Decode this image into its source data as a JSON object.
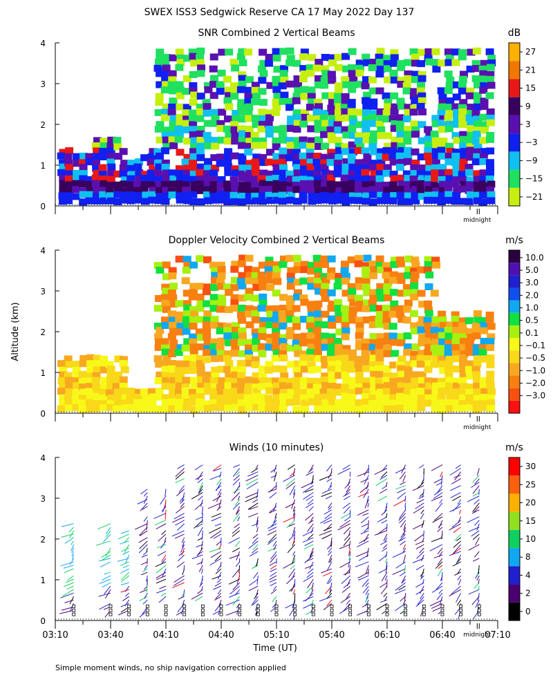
{
  "header": {
    "title": "SWEX ISS3 Sedgwick Reserve CA  17 May 2022 Day 137"
  },
  "y_axis": {
    "label": "Altitude (km)",
    "ticks": [
      0,
      1,
      2,
      3,
      4
    ]
  },
  "x_axis": {
    "label": "Time (UT)",
    "ticks": [
      "03:10",
      "03:40",
      "04:10",
      "04:40",
      "05:10",
      "05:40",
      "06:10",
      "06:40",
      "07:10"
    ],
    "midnight_label": "midnight"
  },
  "footnote": "Simple moment winds, no ship navigation correction applied",
  "colors": {
    "snr": [
      "#c6ef10",
      "#20e060",
      "#10c0f0",
      "#1020f0",
      "#5a10b0",
      "#3a0060",
      "#e81818",
      "#f07800",
      "#ffb000"
    ],
    "velocity": [
      "#ff1010",
      "#f85010",
      "#f88010",
      "#f8a820",
      "#f8d818",
      "#f8f818",
      "#a8f010",
      "#10e040",
      "#10a8f0",
      "#1050f0",
      "#2020d0",
      "#5010b0",
      "#2a0040"
    ],
    "winds": [
      "#000000",
      "#4a0070",
      "#2020d0",
      "#10a8f0",
      "#10d060",
      "#90e020",
      "#ffb000",
      "#ff6010",
      "#ff0000"
    ]
  },
  "chart_data": [
    {
      "type": "heatmap",
      "title": "SNR Combined 2 Vertical Beams",
      "ylabel": "Altitude (km)",
      "xlabel": "",
      "x_range": [
        "03:10",
        "07:10"
      ],
      "ylim": [
        0,
        4
      ],
      "colorbar": {
        "unit": "dB",
        "labels": [
          "27",
          "21",
          "15",
          "9",
          "3",
          "−3",
          "−9",
          "−15",
          "−21"
        ]
      },
      "layers": [
        {
          "name": "band-low",
          "value": -3,
          "segments": [
            {
              "t_start": "03:10",
              "t_end": "07:10",
              "top_km": 0.6
            }
          ]
        },
        {
          "name": "band-mid",
          "value": 0,
          "segments": [
            {
              "t_start": "03:10",
              "t_end": "03:48",
              "top_km": 1.4
            },
            {
              "t_start": "03:48",
              "t_end": "04:00",
              "top_km": 1.4
            },
            {
              "t_start": "04:00",
              "t_end": "07:10",
              "top_km": 1.6
            }
          ]
        },
        {
          "name": "band-upper",
          "value": -15,
          "segments": [
            {
              "t_start": "03:10",
              "t_end": "03:18",
              "top_km": 1.7
            },
            {
              "t_start": "03:27",
              "t_end": "03:48",
              "top_km": 1.7
            },
            {
              "t_start": "04:04",
              "t_end": "07:10",
              "top_km": 3.9
            }
          ]
        }
      ]
    },
    {
      "type": "heatmap",
      "title": "Doppler Velocity Combined 2 Vertical Beams",
      "ylabel": "Altitude (km)",
      "xlabel": "",
      "x_range": [
        "03:10",
        "07:10"
      ],
      "ylim": [
        0,
        4
      ],
      "colorbar": {
        "unit": "m/s",
        "labels": [
          "10.0",
          "5.0",
          "3.0",
          "2.0",
          "1.0",
          "0.5",
          "0.1",
          "−0.1",
          "−0.5",
          "−1.0",
          "−2.0",
          "−3.0"
        ]
      },
      "layers": [
        {
          "name": "band-low",
          "value": -0.1,
          "segments": [
            {
              "t_start": "03:10",
              "t_end": "07:10",
              "top_km": 0.7
            }
          ]
        },
        {
          "name": "band-mid",
          "value": -0.5,
          "segments": [
            {
              "t_start": "03:10",
              "t_end": "03:48",
              "top_km": 1.5
            },
            {
              "t_start": "04:04",
              "t_end": "07:10",
              "top_km": 2.6
            }
          ]
        },
        {
          "name": "band-upper",
          "value": -1.0,
          "segments": [
            {
              "t_start": "04:04",
              "t_end": "06:35",
              "top_km": 3.9
            }
          ]
        }
      ]
    },
    {
      "type": "scatter",
      "title": "Winds (10 minutes)",
      "ylabel": "Altitude (km)",
      "xlabel": "Time (UT)",
      "x_range": [
        "03:10",
        "07:10"
      ],
      "ylim": [
        0,
        4
      ],
      "colorbar": {
        "unit": "m/s",
        "labels": [
          "30",
          "25",
          "20",
          "15",
          "10",
          "8",
          "4",
          "2",
          "0"
        ]
      },
      "profiles": [
        "03:20",
        "03:40",
        "03:50",
        "04:00",
        "04:10",
        "04:20",
        "04:30",
        "04:40",
        "04:50",
        "05:00",
        "05:10",
        "05:20",
        "05:30",
        "05:40",
        "05:50",
        "06:00",
        "06:10",
        "06:20",
        "06:30",
        "06:40",
        "06:50",
        "07:00"
      ]
    }
  ]
}
